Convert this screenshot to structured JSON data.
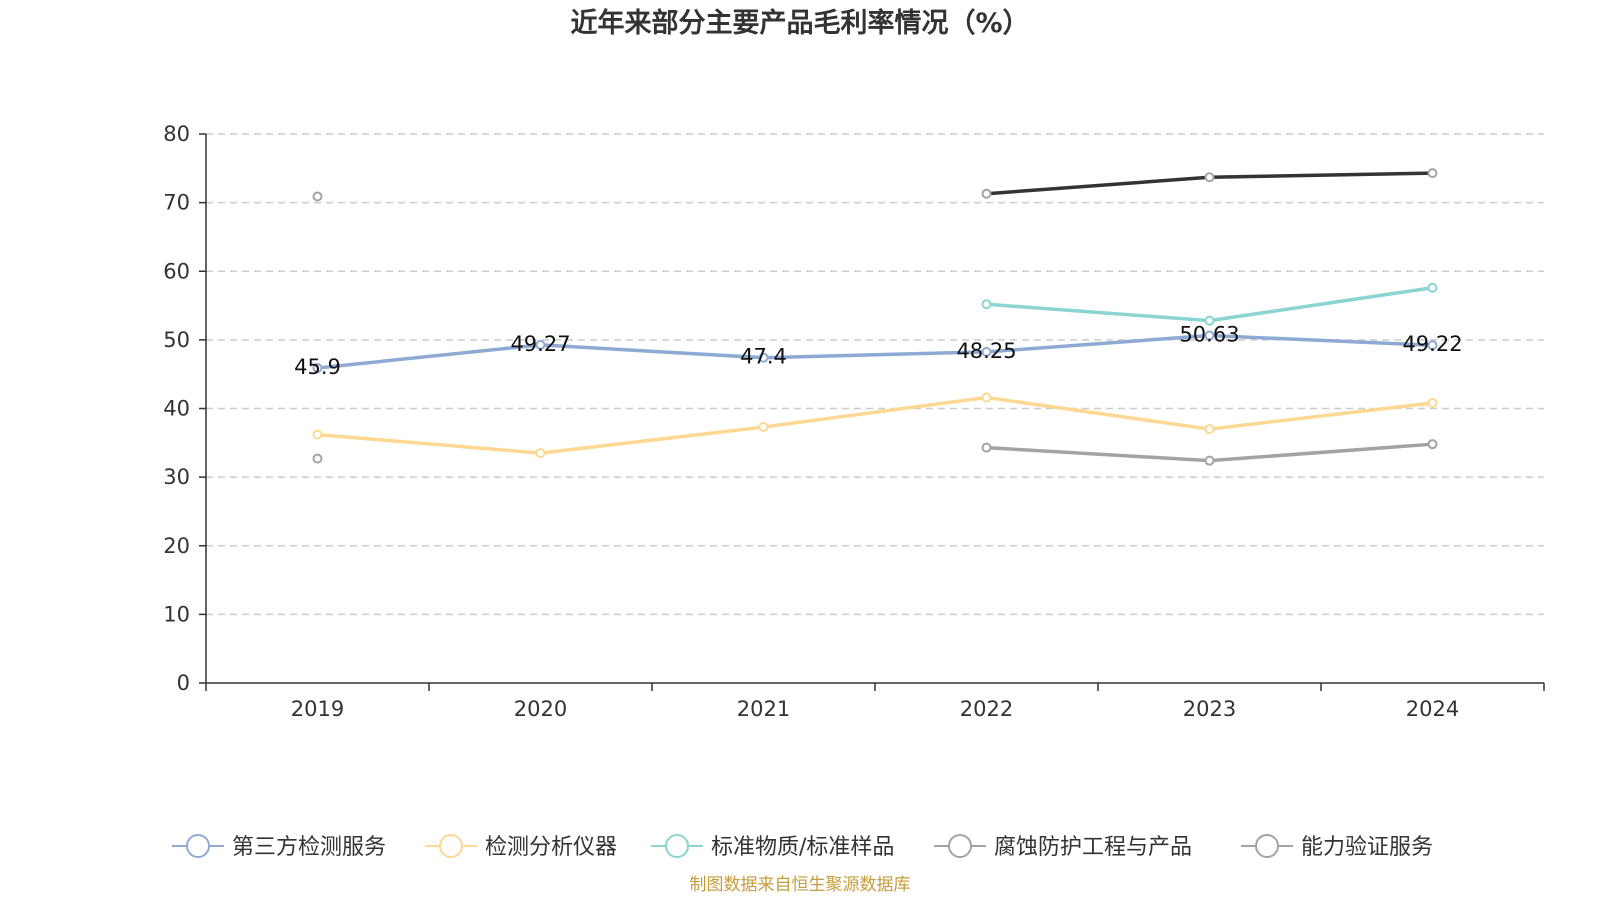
{
  "chart_data": {
    "type": "line",
    "title": "近年来部分主要产品毛利率情况（%）",
    "source": "制图数据来自恒生聚源数据库",
    "categories": [
      "2019",
      "2020",
      "2021",
      "2022",
      "2023",
      "2024"
    ],
    "ylim": [
      0,
      80
    ],
    "yticks": [
      0,
      10,
      20,
      30,
      40,
      50,
      60,
      70,
      80
    ],
    "grid": true,
    "legend_position": "bottom",
    "series": [
      {
        "name": "第三方检测服务",
        "color": "#8eaad4",
        "values": [
          45.9,
          49.27,
          47.4,
          48.25,
          50.63,
          49.22
        ],
        "labels": [
          "45.9",
          "49.27",
          "47.4",
          "48.25",
          "50.63",
          "49.22"
        ]
      },
      {
        "name": "检测分析仪器",
        "color": "#fcd893",
        "values": [
          36.2,
          33.5,
          37.3,
          41.6,
          37.0,
          40.8
        ]
      },
      {
        "name": "标准物质/标准样品",
        "color": "#8ad4d1",
        "values": [
          null,
          null,
          null,
          55.2,
          52.8,
          57.6
        ]
      },
      {
        "name": "腐蚀防护工程与产品",
        "color": "#a3a3a3",
        "values": [
          32.7,
          null,
          null,
          34.3,
          32.4,
          34.8
        ]
      },
      {
        "name": "能力验证服务",
        "color": "#333333",
        "legend_color": "#a3a3a3",
        "values": [
          70.9,
          null,
          null,
          71.3,
          73.7,
          74.3
        ]
      }
    ]
  }
}
